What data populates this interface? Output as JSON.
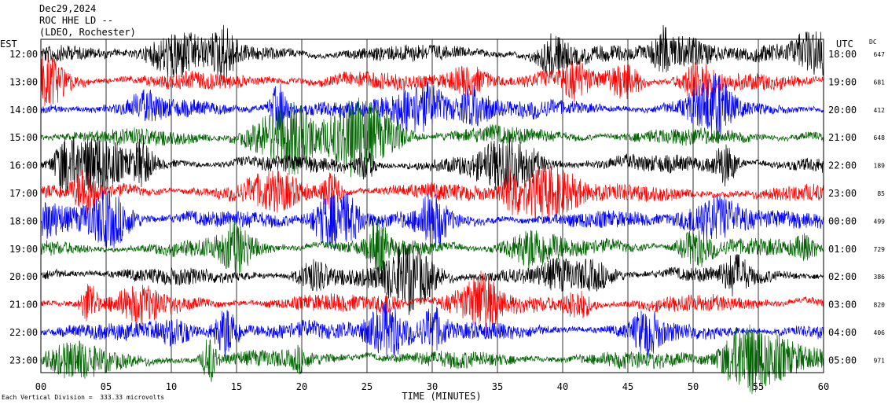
{
  "header": {
    "date": "Dec29,2024",
    "station": "ROC HHE LD --",
    "location": "(LDEO, Rochester)"
  },
  "footer": {
    "scale_note": "Each Vertical Division =  333.33 microvolts"
  },
  "chart_data": {
    "type": "line",
    "title": "",
    "xlabel": "TIME (MINUTES)",
    "left_axis_label": "EST",
    "right_axis_label": "UTC",
    "dc_label": "DC",
    "xlim": [
      0,
      60
    ],
    "x_ticks": [
      "00",
      "05",
      "10",
      "15",
      "20",
      "25",
      "30",
      "35",
      "40",
      "45",
      "50",
      "55",
      "60"
    ],
    "colors": [
      "#000000",
      "#ff0000",
      "#0000ff",
      "#006400"
    ],
    "rows": [
      {
        "est": "12:00",
        "utc": "18:00",
        "dc": "647"
      },
      {
        "est": "13:00",
        "utc": "19:00",
        "dc": "681"
      },
      {
        "est": "14:00",
        "utc": "20:00",
        "dc": "412"
      },
      {
        "est": "15:00",
        "utc": "21:00",
        "dc": "648"
      },
      {
        "est": "16:00",
        "utc": "22:00",
        "dc": "189"
      },
      {
        "est": "17:00",
        "utc": "23:00",
        "dc": "85"
      },
      {
        "est": "18:00",
        "utc": "00:00",
        "dc": "499"
      },
      {
        "est": "19:00",
        "utc": "01:00",
        "dc": "729"
      },
      {
        "est": "20:00",
        "utc": "02:00",
        "dc": "386"
      },
      {
        "est": "21:00",
        "utc": "03:00",
        "dc": "820"
      },
      {
        "est": "22:00",
        "utc": "04:00",
        "dc": "406"
      },
      {
        "est": "23:00",
        "utc": "05:00",
        "dc": "971"
      }
    ]
  }
}
